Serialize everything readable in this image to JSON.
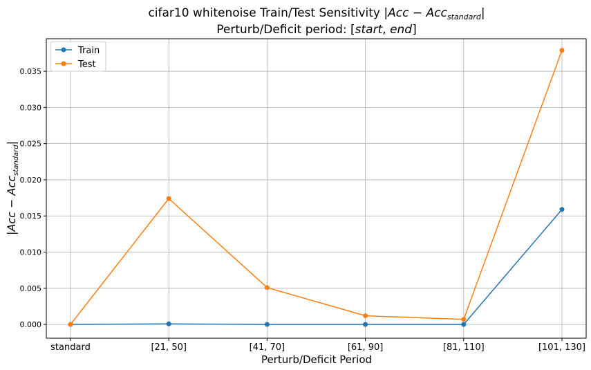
{
  "chart_data": {
    "type": "line",
    "title_main": "cifar10 whitenoise Train/Test Sensitivity ",
    "title_math": {
      "bar": "|",
      "acc": "Acc",
      "minus": " − ",
      "sub": "standard"
    },
    "subtitle": "Perturb/Deficit period: ",
    "subtitle_math": {
      "open": "[",
      "start": "start",
      "comma": ", ",
      "end": "end",
      "close": "]"
    },
    "xlabel": "Perturb/Deficit Period",
    "ylabel_math": {
      "bar": "|",
      "acc": "Acc",
      "minus": " − ",
      "sub": "standard"
    },
    "categories": [
      "standard",
      "[21, 50]",
      "[41, 70]",
      "[61, 90]",
      "[81, 110]",
      "[101, 130]"
    ],
    "ylim": [
      -0.0019,
      0.0395
    ],
    "yticks": [
      0.0,
      0.005,
      0.01,
      0.015,
      0.02,
      0.025,
      0.03,
      0.035
    ],
    "ytick_labels": [
      "0.000",
      "0.005",
      "0.010",
      "0.015",
      "0.020",
      "0.025",
      "0.030",
      "0.035"
    ],
    "grid": true,
    "legend_position": "top-left",
    "series": [
      {
        "name": "Train",
        "color": "#1f77b4",
        "values": [
          0.0,
          8e-05,
          0.0,
          0.0,
          0.0,
          0.0159
        ]
      },
      {
        "name": "Test",
        "color": "#ff7f0e",
        "values": [
          0.0,
          0.0174,
          0.0051,
          0.0012,
          0.0007,
          0.0379
        ]
      }
    ]
  }
}
